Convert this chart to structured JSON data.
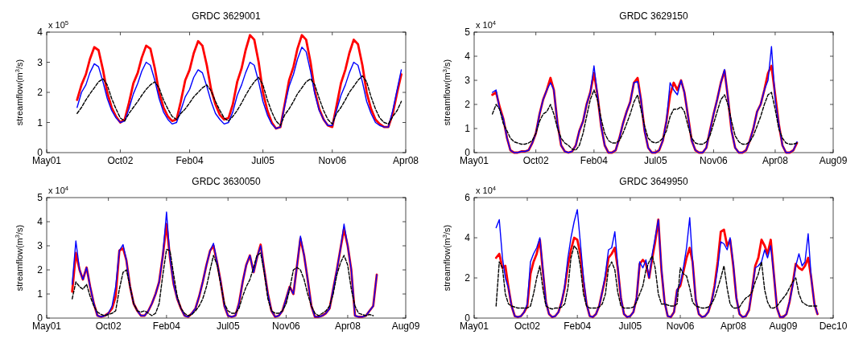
{
  "chart_data": [
    {
      "type": "line",
      "title": "GRDC 3629001",
      "ylabel": "streamflow(m$^{3}$/s)",
      "annotations": [
        "x 10$^{5}$"
      ],
      "grid": false,
      "xlim": [
        "2001-05",
        "2008-04"
      ],
      "xticks": [
        {
          "value": "2001-05",
          "label": "May01"
        },
        {
          "value": "2002-10",
          "label": "Oct02"
        },
        {
          "value": "2004-02",
          "label": "Feb04"
        },
        {
          "value": "2005-07",
          "label": "Jul05"
        },
        {
          "value": "2006-11",
          "label": "Nov06"
        },
        {
          "value": "2008-04",
          "label": "Apr08"
        }
      ],
      "ylim": [
        0,
        4
      ],
      "yticks": [
        0,
        1,
        2,
        3,
        4
      ],
      "x": [
        "2001-12",
        "2002-01",
        "2002-02",
        "2002-03",
        "2002-04",
        "2002-05",
        "2002-06",
        "2002-07",
        "2002-08",
        "2002-09",
        "2002-10",
        "2002-11",
        "2002-12",
        "2003-01",
        "2003-02",
        "2003-03",
        "2003-04",
        "2003-05",
        "2003-06",
        "2003-07",
        "2003-08",
        "2003-09",
        "2003-10",
        "2003-11",
        "2003-12",
        "2004-01",
        "2004-02",
        "2004-03",
        "2004-04",
        "2004-05",
        "2004-06",
        "2004-07",
        "2004-08",
        "2004-09",
        "2004-10",
        "2004-11",
        "2004-12",
        "2005-01",
        "2005-02",
        "2005-03",
        "2005-04",
        "2005-05",
        "2005-06",
        "2005-07",
        "2005-08",
        "2005-09",
        "2005-10",
        "2005-11",
        "2005-12",
        "2006-01",
        "2006-02",
        "2006-03",
        "2006-04",
        "2006-05",
        "2006-06",
        "2006-07",
        "2006-08",
        "2006-09",
        "2006-10",
        "2006-11",
        "2006-12",
        "2007-01",
        "2007-02",
        "2007-03",
        "2007-04",
        "2007-05",
        "2007-06",
        "2007-07",
        "2007-08",
        "2007-09",
        "2007-10",
        "2007-11",
        "2007-12",
        "2008-01",
        "2008-02",
        "2008-03"
      ],
      "series": [
        {
          "color": "#ff0000",
          "values": [
            1.75,
            2.25,
            2.6,
            3.1,
            3.5,
            3.4,
            2.75,
            2.0,
            1.5,
            1.2,
            1.0,
            1.1,
            1.65,
            2.3,
            2.65,
            3.15,
            3.55,
            3.45,
            2.8,
            2.0,
            1.5,
            1.2,
            1.05,
            1.1,
            1.7,
            2.4,
            2.75,
            3.3,
            3.7,
            3.55,
            2.9,
            2.1,
            1.6,
            1.25,
            1.1,
            1.15,
            1.6,
            2.35,
            2.8,
            3.4,
            3.9,
            3.75,
            3.0,
            2.0,
            1.4,
            1.0,
            0.8,
            0.85,
            1.6,
            2.4,
            2.85,
            3.45,
            3.9,
            3.75,
            3.0,
            2.05,
            1.45,
            1.1,
            0.9,
            0.85,
            1.55,
            2.3,
            2.75,
            3.3,
            3.75,
            3.6,
            2.9,
            2.0,
            1.45,
            1.1,
            0.95,
            0.85,
            0.85,
            1.3,
            2.0,
            2.6
          ]
        },
        {
          "color": "#0000ff",
          "values": [
            1.5,
            2.0,
            2.25,
            2.65,
            2.95,
            2.85,
            2.35,
            1.8,
            1.4,
            1.15,
            1.0,
            1.05,
            1.45,
            1.95,
            2.3,
            2.7,
            3.0,
            2.9,
            2.4,
            1.8,
            1.35,
            1.1,
            0.95,
            1.0,
            1.4,
            1.85,
            2.1,
            2.5,
            2.75,
            2.65,
            2.2,
            1.7,
            1.3,
            1.1,
            0.95,
            1.0,
            1.35,
            1.9,
            2.25,
            2.65,
            3.0,
            2.9,
            2.35,
            1.7,
            1.25,
            0.95,
            0.8,
            0.85,
            1.55,
            2.2,
            2.6,
            3.1,
            3.5,
            3.35,
            2.7,
            1.95,
            1.4,
            1.1,
            0.9,
            0.9,
            1.4,
            1.9,
            2.25,
            2.65,
            3.0,
            2.9,
            2.35,
            1.7,
            1.3,
            1.0,
            0.9,
            0.85,
            0.85,
            1.4,
            2.1,
            2.75
          ]
        },
        {
          "color": "#000000",
          "line_style": "dashed",
          "values": [
            1.3,
            1.5,
            1.75,
            1.95,
            2.15,
            2.35,
            2.45,
            2.25,
            1.8,
            1.45,
            1.15,
            1.05,
            1.3,
            1.5,
            1.7,
            1.9,
            2.1,
            2.25,
            2.35,
            2.15,
            1.75,
            1.45,
            1.2,
            1.1,
            1.3,
            1.45,
            1.65,
            1.85,
            2.0,
            2.15,
            2.25,
            2.05,
            1.7,
            1.4,
            1.15,
            1.05,
            1.2,
            1.4,
            1.65,
            1.9,
            2.15,
            2.35,
            2.5,
            2.25,
            1.75,
            1.35,
            1.05,
            0.9,
            1.25,
            1.45,
            1.7,
            1.95,
            2.15,
            2.35,
            2.45,
            2.25,
            1.8,
            1.4,
            1.1,
            0.95,
            1.3,
            1.5,
            1.75,
            2.0,
            2.2,
            2.4,
            2.55,
            2.35,
            1.85,
            1.45,
            1.15,
            1.0,
            0.95,
            1.2,
            1.4,
            1.7
          ]
        }
      ]
    },
    {
      "type": "line",
      "title": "GRDC 3629150",
      "ylabel": "streamflow(m$^{3}$/s)",
      "annotations": [
        "x 10$^{4}$"
      ],
      "grid": false,
      "xlim": [
        "2001-05",
        "2009-08"
      ],
      "xticks": [
        {
          "value": "2001-05",
          "label": "May01"
        },
        {
          "value": "2002-10",
          "label": "Oct02"
        },
        {
          "value": "2004-02",
          "label": "Feb04"
        },
        {
          "value": "2005-07",
          "label": "Jul05"
        },
        {
          "value": "2006-11",
          "label": "Nov06"
        },
        {
          "value": "2008-04",
          "label": "Apr08"
        },
        {
          "value": "2009-08",
          "label": "Aug09"
        }
      ],
      "ylim": [
        0,
        5
      ],
      "yticks": [
        0,
        1,
        2,
        3,
        4,
        5
      ],
      "x": [
        "2001-10",
        "2001-11",
        "2001-12",
        "2002-01",
        "2002-02",
        "2002-03",
        "2002-04",
        "2002-05",
        "2002-06",
        "2002-07",
        "2002-08",
        "2002-09",
        "2002-10",
        "2002-11",
        "2002-12",
        "2003-01",
        "2003-02",
        "2003-03",
        "2003-04",
        "2003-05",
        "2003-06",
        "2003-07",
        "2003-08",
        "2003-09",
        "2003-10",
        "2003-11",
        "2003-12",
        "2004-01",
        "2004-02",
        "2004-03",
        "2004-04",
        "2004-05",
        "2004-06",
        "2004-07",
        "2004-08",
        "2004-09",
        "2004-10",
        "2004-11",
        "2004-12",
        "2005-01",
        "2005-02",
        "2005-03",
        "2005-04",
        "2005-05",
        "2005-06",
        "2005-07",
        "2005-08",
        "2005-09",
        "2005-10",
        "2005-11",
        "2005-12",
        "2006-01",
        "2006-02",
        "2006-03",
        "2006-04",
        "2006-05",
        "2006-06",
        "2006-07",
        "2006-08",
        "2006-09",
        "2006-10",
        "2006-11",
        "2006-12",
        "2007-01",
        "2007-02",
        "2007-03",
        "2007-04",
        "2007-05",
        "2007-06",
        "2007-07",
        "2007-08",
        "2007-09",
        "2007-10",
        "2007-11",
        "2007-12",
        "2008-01",
        "2008-02",
        "2008-03",
        "2008-04",
        "2008-05",
        "2008-06",
        "2008-07",
        "2008-08",
        "2008-09",
        "2008-10"
      ],
      "series": [
        {
          "color": "#ff0000",
          "values": [
            2.4,
            2.5,
            1.9,
            1.4,
            0.6,
            0.1,
            0,
            0,
            0.05,
            0.05,
            0.1,
            0.4,
            0.8,
            1.6,
            2.2,
            2.6,
            3.1,
            2.6,
            1.2,
            0.3,
            0.05,
            0,
            0.05,
            0.3,
            0.9,
            1.3,
            2.0,
            2.5,
            3.3,
            2.4,
            1.1,
            0.3,
            0,
            0,
            0.1,
            0.6,
            1.2,
            1.7,
            2.1,
            2.9,
            3.1,
            2.2,
            0.9,
            0.2,
            0,
            0,
            0.1,
            0.5,
            1.3,
            2.4,
            2.9,
            2.6,
            3.0,
            2.5,
            1.5,
            0.5,
            0.1,
            0,
            0,
            0.2,
            0.9,
            1.6,
            2.2,
            2.9,
            3.4,
            2.3,
            0.9,
            0.2,
            0,
            0,
            0.1,
            0.5,
            1.0,
            1.7,
            2.0,
            2.6,
            3.3,
            3.6,
            2.4,
            1.2,
            0.3,
            0,
            0,
            0.1,
            0.4
          ]
        },
        {
          "color": "#0000ff",
          "values": [
            2.5,
            2.6,
            1.8,
            1.4,
            0.6,
            0.1,
            0,
            0,
            0.05,
            0.05,
            0.1,
            0.4,
            0.8,
            1.6,
            2.2,
            2.6,
            2.9,
            2.6,
            1.2,
            0.3,
            0.05,
            0,
            0.05,
            0.3,
            0.9,
            1.3,
            2.0,
            2.5,
            3.6,
            2.4,
            1.1,
            0.3,
            0,
            0,
            0.1,
            0.6,
            1.2,
            1.7,
            2.1,
            2.9,
            2.95,
            2.2,
            0.9,
            0.2,
            0,
            0,
            0.1,
            0.5,
            1.3,
            2.9,
            2.6,
            2.4,
            3.0,
            2.5,
            1.5,
            0.5,
            0.1,
            0,
            0,
            0.2,
            0.9,
            1.6,
            2.2,
            2.9,
            3.45,
            2.3,
            0.9,
            0.2,
            0,
            0,
            0.1,
            0.5,
            1.0,
            1.7,
            2.0,
            2.6,
            3.0,
            4.4,
            2.2,
            1.2,
            0.3,
            0,
            0,
            0.1,
            0.45
          ]
        },
        {
          "color": "#000000",
          "line_style": "dashed",
          "values": [
            1.6,
            2.0,
            1.8,
            1.2,
            0.9,
            0.6,
            0.45,
            0.4,
            0.35,
            0.35,
            0.4,
            0.5,
            0.8,
            1.3,
            1.6,
            1.7,
            2.0,
            1.6,
            1.0,
            0.6,
            0.4,
            0.3,
            0.15,
            0.1,
            0.3,
            0.8,
            1.5,
            2.2,
            2.6,
            2.2,
            1.4,
            0.8,
            0.5,
            0.4,
            0.4,
            0.5,
            0.8,
            1.2,
            1.6,
            2.1,
            2.4,
            1.8,
            1.1,
            0.6,
            0.45,
            0.4,
            0.45,
            0.6,
            0.9,
            1.5,
            1.8,
            1.8,
            1.9,
            1.7,
            1.1,
            0.6,
            0.4,
            0.35,
            0.35,
            0.45,
            0.7,
            1.2,
            1.7,
            2.2,
            2.4,
            2.0,
            1.3,
            0.7,
            0.45,
            0.35,
            0.35,
            0.45,
            0.7,
            1.1,
            1.5,
            2.0,
            2.4,
            2.5,
            1.8,
            1.0,
            0.6,
            0.4,
            0.35,
            0.35,
            0.4
          ]
        }
      ]
    },
    {
      "type": "line",
      "title": "GRDC 3630050",
      "ylabel": "streamflow(m$^{3}$/s)",
      "annotations": [
        "x 10$^{4}$"
      ],
      "grid": false,
      "xlim": [
        "2001-05",
        "2009-08"
      ],
      "xticks": [
        {
          "value": "2001-05",
          "label": "May01"
        },
        {
          "value": "2002-10",
          "label": "Oct02"
        },
        {
          "value": "2004-02",
          "label": "Feb04"
        },
        {
          "value": "2005-07",
          "label": "Jul05"
        },
        {
          "value": "2006-11",
          "label": "Nov06"
        },
        {
          "value": "2008-04",
          "label": "Apr08"
        },
        {
          "value": "2009-08",
          "label": "Aug09"
        }
      ],
      "ylim": [
        0,
        5
      ],
      "yticks": [
        0,
        1,
        2,
        3,
        4,
        5
      ],
      "x": [
        "2001-12",
        "2002-01",
        "2002-02",
        "2002-03",
        "2002-04",
        "2002-05",
        "2002-06",
        "2002-07",
        "2002-08",
        "2002-09",
        "2002-10",
        "2002-11",
        "2002-12",
        "2003-01",
        "2003-02",
        "2003-03",
        "2003-04",
        "2003-05",
        "2003-06",
        "2003-07",
        "2003-08",
        "2003-09",
        "2003-10",
        "2003-11",
        "2003-12",
        "2004-01",
        "2004-02",
        "2004-03",
        "2004-04",
        "2004-05",
        "2004-06",
        "2004-07",
        "2004-08",
        "2004-09",
        "2004-10",
        "2004-11",
        "2004-12",
        "2005-01",
        "2005-02",
        "2005-03",
        "2005-04",
        "2005-05",
        "2005-06",
        "2005-07",
        "2005-08",
        "2005-09",
        "2005-10",
        "2005-11",
        "2005-12",
        "2006-01",
        "2006-02",
        "2006-03",
        "2006-04",
        "2006-05",
        "2006-06",
        "2006-07",
        "2006-08",
        "2006-09",
        "2006-10",
        "2006-11",
        "2006-12",
        "2007-01",
        "2007-02",
        "2007-03",
        "2007-04",
        "2007-05",
        "2007-06",
        "2007-07",
        "2007-08",
        "2007-09",
        "2007-10",
        "2007-11",
        "2007-12",
        "2008-01",
        "2008-02",
        "2008-03",
        "2008-04",
        "2008-05",
        "2008-06",
        "2008-07",
        "2008-08",
        "2008-09",
        "2008-10",
        "2008-11",
        "2008-12"
      ],
      "series": [
        {
          "color": "#ff0000",
          "values": [
            1.1,
            2.7,
            2.0,
            1.6,
            2.1,
            1.3,
            0.6,
            0.1,
            0.05,
            0.1,
            0.2,
            0.4,
            0.9,
            2.8,
            2.9,
            2.4,
            1.3,
            0.6,
            0.3,
            0.1,
            0.1,
            0.3,
            0.6,
            1.0,
            1.5,
            2.6,
            3.9,
            2.5,
            1.4,
            0.8,
            0.4,
            0.1,
            0.05,
            0.2,
            0.4,
            0.9,
            1.5,
            2.2,
            2.8,
            3.0,
            2.3,
            1.5,
            0.5,
            0.1,
            0.05,
            0.1,
            0.6,
            1.5,
            2.2,
            2.6,
            1.9,
            2.5,
            3.05,
            2.0,
            1.0,
            0.3,
            0.05,
            0.1,
            0.3,
            0.8,
            1.3,
            1.0,
            2.2,
            3.3,
            2.6,
            1.6,
            0.5,
            0.05,
            0.05,
            0.1,
            0.2,
            0.4,
            1.2,
            2.0,
            2.9,
            3.7,
            3.0,
            2.0,
            0.1,
            0.05,
            0.05,
            0.1,
            0.3,
            0.5,
            1.8
          ]
        },
        {
          "color": "#0000ff",
          "values": [
            1.4,
            3.2,
            2.0,
            1.6,
            2.1,
            1.3,
            0.6,
            0.1,
            0.05,
            0.1,
            0.2,
            0.5,
            1.3,
            2.8,
            3.05,
            2.4,
            1.3,
            0.6,
            0.3,
            0.1,
            0.1,
            0.3,
            0.6,
            1.0,
            1.5,
            2.6,
            4.4,
            2.5,
            1.4,
            0.8,
            0.4,
            0.1,
            0.05,
            0.2,
            0.4,
            0.9,
            1.5,
            2.2,
            2.8,
            3.1,
            2.3,
            1.5,
            0.5,
            0.1,
            0.05,
            0.1,
            0.6,
            1.5,
            2.2,
            2.6,
            1.9,
            2.5,
            3.0,
            2.0,
            1.0,
            0.3,
            0.05,
            0.1,
            0.3,
            0.8,
            1.3,
            1.0,
            2.2,
            3.4,
            2.6,
            1.6,
            0.5,
            0.05,
            0.05,
            0.1,
            0.2,
            0.4,
            1.2,
            2.0,
            2.9,
            3.9,
            3.0,
            2.0,
            0.1,
            0.05,
            0.05,
            0.1,
            0.3,
            0.5,
            1.8
          ]
        },
        {
          "color": "#000000",
          "line_style": "dashed",
          "values": [
            0.8,
            1.5,
            1.3,
            1.2,
            1.4,
            0.9,
            0.5,
            0.25,
            0.15,
            0.1,
            0.15,
            0.2,
            0.3,
            1.2,
            1.9,
            2.0,
            1.3,
            0.6,
            0.3,
            0.25,
            0.3,
            0.2,
            0.1,
            0.2,
            0.6,
            1.8,
            2.85,
            2.8,
            1.8,
            0.9,
            0.4,
            0.2,
            0.1,
            0.15,
            0.3,
            0.5,
            0.8,
            1.3,
            2.0,
            2.6,
            2.2,
            1.4,
            0.6,
            0.3,
            0.2,
            0.2,
            0.4,
            0.9,
            1.3,
            1.6,
            2.1,
            2.6,
            2.7,
            1.9,
            0.8,
            0.3,
            0.2,
            0.2,
            0.3,
            0.6,
            1.2,
            2.0,
            2.1,
            2.0,
            1.6,
            1.0,
            0.5,
            0.2,
            0.1,
            0.2,
            0.3,
            0.5,
            1.0,
            1.8,
            2.3,
            2.6,
            2.2,
            1.2,
            0.5,
            0.2,
            0.15,
            0.1,
            0.15,
            0.1,
            null
          ]
        }
      ]
    },
    {
      "type": "line",
      "title": "GRDC 3649950",
      "ylabel": "streamflow(m$^{3}$/s)",
      "annotations": [
        "x 10$^{4}$"
      ],
      "grid": false,
      "xlim": [
        "2001-05",
        "2010-12"
      ],
      "xticks": [
        {
          "value": "2001-05",
          "label": "May01"
        },
        {
          "value": "2002-10",
          "label": "Oct02"
        },
        {
          "value": "2004-02",
          "label": "Feb04"
        },
        {
          "value": "2005-07",
          "label": "Jul05"
        },
        {
          "value": "2006-11",
          "label": "Nov06"
        },
        {
          "value": "2008-04",
          "label": "Apr08"
        },
        {
          "value": "2009-08",
          "label": "Aug09"
        },
        {
          "value": "2010-12",
          "label": "Dec10"
        }
      ],
      "ylim": [
        0,
        6
      ],
      "yticks": [
        0,
        2,
        4,
        6
      ],
      "x": [
        "2001-12",
        "2002-01",
        "2002-02",
        "2002-03",
        "2002-04",
        "2002-05",
        "2002-06",
        "2002-07",
        "2002-08",
        "2002-09",
        "2002-10",
        "2002-11",
        "2002-12",
        "2003-01",
        "2003-02",
        "2003-03",
        "2003-04",
        "2003-05",
        "2003-06",
        "2003-07",
        "2003-08",
        "2003-09",
        "2003-10",
        "2003-11",
        "2003-12",
        "2004-01",
        "2004-02",
        "2004-03",
        "2004-04",
        "2004-05",
        "2004-06",
        "2004-07",
        "2004-08",
        "2004-09",
        "2004-10",
        "2004-11",
        "2004-12",
        "2005-01",
        "2005-02",
        "2005-03",
        "2005-04",
        "2005-05",
        "2005-06",
        "2005-07",
        "2005-08",
        "2005-09",
        "2005-10",
        "2005-11",
        "2005-12",
        "2006-01",
        "2006-02",
        "2006-03",
        "2006-04",
        "2006-05",
        "2006-06",
        "2006-07",
        "2006-08",
        "2006-09",
        "2006-10",
        "2006-11",
        "2006-12",
        "2007-01",
        "2007-02",
        "2007-03",
        "2007-04",
        "2007-05",
        "2007-06",
        "2007-07",
        "2007-08",
        "2007-09",
        "2007-10",
        "2007-11",
        "2007-12",
        "2008-01",
        "2008-02",
        "2008-03",
        "2008-04",
        "2008-05",
        "2008-06",
        "2008-07",
        "2008-08",
        "2008-09",
        "2008-10",
        "2008-11",
        "2008-12",
        "2009-01",
        "2009-02",
        "2009-03",
        "2009-04",
        "2009-05",
        "2009-06",
        "2009-07",
        "2009-08",
        "2009-09",
        "2009-10",
        "2009-11",
        "2009-12",
        "2010-01",
        "2010-02",
        "2010-03",
        "2010-04",
        "2010-05",
        "2010-06",
        "2010-07"
      ],
      "series": [
        {
          "color": "#ff0000",
          "values": [
            3.0,
            3.2,
            2.5,
            2.6,
            1.5,
            0.6,
            0.1,
            0.05,
            0.1,
            0.3,
            0.6,
            2.2,
            2.8,
            3.2,
            3.9,
            2.4,
            0.8,
            0.2,
            0.05,
            0.1,
            0.3,
            0.8,
            1.5,
            2.6,
            3.4,
            4.0,
            3.9,
            3.2,
            1.8,
            0.7,
            0.1,
            0.05,
            0.2,
            0.6,
            1.3,
            2.0,
            3.0,
            3.2,
            3.5,
            2.5,
            1.0,
            0.2,
            0.05,
            0.1,
            0.3,
            1.0,
            2.7,
            2.9,
            2.7,
            2.0,
            3.0,
            3.8,
            4.9,
            2.4,
            0.8,
            0.1,
            0.05,
            0.3,
            1.4,
            1.6,
            2.3,
            3.0,
            3.5,
            2.8,
            0.9,
            0.2,
            0.05,
            0.1,
            0.3,
            0.8,
            1.6,
            2.8,
            4.3,
            4.4,
            3.6,
            3.9,
            2.6,
            1.0,
            0.2,
            0.05,
            0.1,
            0.4,
            1.4,
            2.6,
            3.0,
            3.9,
            3.6,
            3.2,
            3.9,
            2.2,
            0.5,
            0.05,
            0.05,
            0.2,
            0.8,
            1.7,
            2.7,
            2.5,
            2.4,
            2.6,
            3.0,
            2.0,
            0.7,
            0.2
          ]
        },
        {
          "color": "#0000ff",
          "values": [
            4.5,
            4.9,
            3.0,
            2.0,
            1.5,
            0.6,
            0.1,
            0.05,
            0.1,
            0.3,
            0.7,
            2.8,
            3.2,
            3.5,
            4.0,
            2.5,
            0.8,
            0.2,
            0.05,
            0.1,
            0.3,
            0.8,
            1.6,
            3.0,
            4.0,
            4.8,
            5.4,
            3.8,
            2.0,
            0.7,
            0.1,
            0.05,
            0.2,
            0.6,
            1.3,
            2.2,
            3.4,
            3.5,
            4.3,
            2.6,
            1.0,
            0.2,
            0.05,
            0.1,
            0.3,
            1.0,
            2.8,
            2.5,
            2.9,
            2.0,
            3.2,
            4.0,
            4.9,
            2.5,
            0.8,
            0.1,
            0.05,
            0.3,
            1.4,
            1.7,
            2.5,
            3.5,
            5.0,
            2.8,
            0.9,
            0.2,
            0.05,
            0.1,
            0.3,
            0.8,
            1.5,
            2.5,
            3.8,
            3.7,
            3.4,
            4.0,
            2.7,
            1.0,
            0.2,
            0.05,
            0.1,
            0.4,
            1.4,
            2.5,
            2.6,
            2.8,
            3.4,
            3.0,
            3.6,
            2.2,
            0.5,
            0.05,
            0.05,
            0.2,
            0.8,
            1.6,
            2.6,
            3.2,
            2.6,
            2.8,
            4.2,
            2.0,
            0.7,
            0.2
          ]
        },
        {
          "color": "#000000",
          "line_style": "dashed",
          "values": [
            0.6,
            2.8,
            2.5,
            1.2,
            0.7,
            0.6,
            0.55,
            0.5,
            0.5,
            0.5,
            0.5,
            0.6,
            1.2,
            2.0,
            2.6,
            1.5,
            0.6,
            0.5,
            0.45,
            0.5,
            0.5,
            0.55,
            0.7,
            1.5,
            3.0,
            3.6,
            3.4,
            2.6,
            1.2,
            0.6,
            0.5,
            0.5,
            0.5,
            0.55,
            0.7,
            1.2,
            2.5,
            2.8,
            2.4,
            1.3,
            0.6,
            0.5,
            0.5,
            0.5,
            0.55,
            0.8,
            1.2,
            1.6,
            2.4,
            2.8,
            3.1,
            2.5,
            1.2,
            0.7,
            0.7,
            0.65,
            0.6,
            0.6,
            0.7,
            2.5,
            2.2,
            2.1,
            1.5,
            0.8,
            0.6,
            0.55,
            0.5,
            0.5,
            0.55,
            0.7,
            1.0,
            1.5,
            2.0,
            2.6,
            1.5,
            0.7,
            0.5,
            0.5,
            0.55,
            0.8,
            1.0,
            1.1,
            1.3,
            1.8,
            2.2,
            2.8,
            1.4,
            0.8,
            0.5,
            0.5,
            0.6,
            0.8,
            1.0,
            1.2,
            1.5,
            1.8,
            2.0,
            1.2,
            0.8,
            0.7,
            0.6,
            0.6,
            0.6,
            0.6
          ]
        }
      ]
    }
  ]
}
